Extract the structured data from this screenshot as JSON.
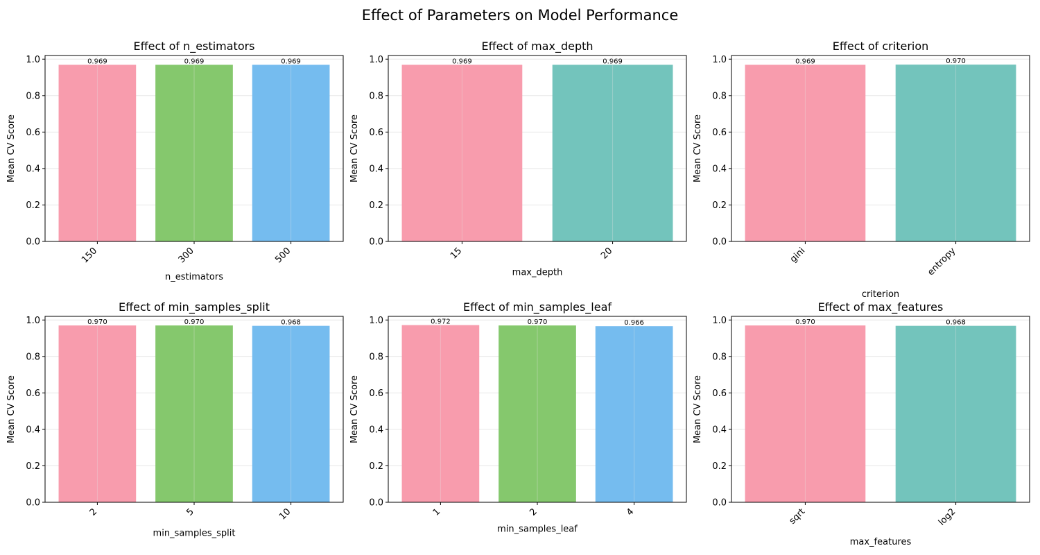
{
  "figure": {
    "title": "Effect of Parameters on Model Performance"
  },
  "colors": {
    "bar1": "#f89cad",
    "bar2": "#85c86d",
    "bar3": "#75bcef",
    "bar2_two": "#73c4bc",
    "grid": "#e6e6e6"
  },
  "chart_data": [
    {
      "type": "bar",
      "title": "Effect of n_estimators",
      "xlabel": "n_estimators",
      "ylabel": "Mean CV Score",
      "categories": [
        "150",
        "300",
        "500"
      ],
      "values": [
        0.969,
        0.969,
        0.969
      ],
      "labels": [
        "0.969",
        "0.969",
        "0.969"
      ],
      "ylim": [
        0,
        1.02
      ],
      "yticks": [
        "0.0",
        "0.2",
        "0.4",
        "0.6",
        "0.8",
        "1.0"
      ],
      "grid": "y"
    },
    {
      "type": "bar",
      "title": "Effect of max_depth",
      "xlabel": "max_depth",
      "ylabel": "Mean CV Score",
      "categories": [
        "15",
        "20"
      ],
      "values": [
        0.969,
        0.969
      ],
      "labels": [
        "0.969",
        "0.969"
      ],
      "ylim": [
        0,
        1.02
      ],
      "yticks": [
        "0.0",
        "0.2",
        "0.4",
        "0.6",
        "0.8",
        "1.0"
      ],
      "grid": "y"
    },
    {
      "type": "bar",
      "title": "Effect of criterion",
      "xlabel": "criterion",
      "ylabel": "Mean CV Score",
      "categories": [
        "gini",
        "entropy"
      ],
      "values": [
        0.969,
        0.97
      ],
      "labels": [
        "0.969",
        "0.970"
      ],
      "ylim": [
        0,
        1.02
      ],
      "yticks": [
        "0.0",
        "0.2",
        "0.4",
        "0.6",
        "0.8",
        "1.0"
      ],
      "grid": "y"
    },
    {
      "type": "bar",
      "title": "Effect of min_samples_split",
      "xlabel": "min_samples_split",
      "ylabel": "Mean CV Score",
      "categories": [
        "2",
        "5",
        "10"
      ],
      "values": [
        0.97,
        0.97,
        0.968
      ],
      "labels": [
        "0.970",
        "0.970",
        "0.968"
      ],
      "ylim": [
        0,
        1.02
      ],
      "yticks": [
        "0.0",
        "0.2",
        "0.4",
        "0.6",
        "0.8",
        "1.0"
      ],
      "grid": "y"
    },
    {
      "type": "bar",
      "title": "Effect of min_samples_leaf",
      "xlabel": "min_samples_leaf",
      "ylabel": "Mean CV Score",
      "categories": [
        "1",
        "2",
        "4"
      ],
      "values": [
        0.972,
        0.97,
        0.966
      ],
      "labels": [
        "0.972",
        "0.970",
        "0.966"
      ],
      "ylim": [
        0,
        1.02
      ],
      "yticks": [
        "0.0",
        "0.2",
        "0.4",
        "0.6",
        "0.8",
        "1.0"
      ],
      "grid": "y"
    },
    {
      "type": "bar",
      "title": "Effect of max_features",
      "xlabel": "max_features",
      "ylabel": "Mean CV Score",
      "categories": [
        "sqrt",
        "log2"
      ],
      "values": [
        0.97,
        0.968
      ],
      "labels": [
        "0.970",
        "0.968"
      ],
      "ylim": [
        0,
        1.02
      ],
      "yticks": [
        "0.0",
        "0.2",
        "0.4",
        "0.6",
        "0.8",
        "1.0"
      ],
      "grid": "y"
    }
  ]
}
